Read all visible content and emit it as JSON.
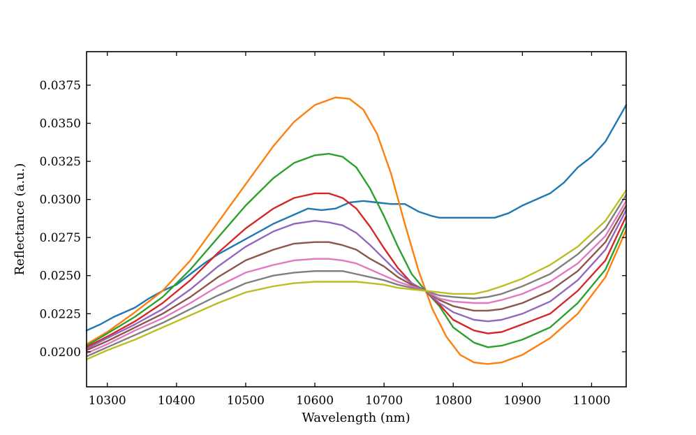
{
  "chart_data": {
    "type": "line",
    "title": "",
    "xlabel": "Wavelength (nm)",
    "ylabel": "Reflectance (a.u.)",
    "xlim": [
      10270,
      11050
    ],
    "ylim": [
      0.0177,
      0.0397
    ],
    "grid": false,
    "legend": "none",
    "x_ticks": [
      10300,
      10400,
      10500,
      10600,
      10700,
      10800,
      10900,
      11000
    ],
    "x_tick_labels": [
      "10300",
      "10400",
      "10500",
      "10600",
      "10700",
      "10800",
      "10900",
      "11000"
    ],
    "y_ticks": [
      0.02,
      0.0225,
      0.025,
      0.0275,
      0.03,
      0.0325,
      0.035,
      0.0375
    ],
    "y_tick_labels": [
      "0.0200",
      "0.0225",
      "0.0250",
      "0.0275",
      "0.0300",
      "0.0325",
      "0.0350",
      "0.0375"
    ],
    "series": [
      {
        "color": "#1f77b4",
        "points": [
          [
            10270,
            0.0214
          ],
          [
            10290,
            0.0218
          ],
          [
            10310,
            0.0223
          ],
          [
            10340,
            0.0229
          ],
          [
            10360,
            0.0235
          ],
          [
            10380,
            0.024
          ],
          [
            10400,
            0.0244
          ],
          [
            10420,
            0.0251
          ],
          [
            10440,
            0.0258
          ],
          [
            10460,
            0.0264
          ],
          [
            10480,
            0.0269
          ],
          [
            10500,
            0.0274
          ],
          [
            10520,
            0.0279
          ],
          [
            10540,
            0.0284
          ],
          [
            10560,
            0.0288
          ],
          [
            10580,
            0.0292
          ],
          [
            10590,
            0.0294
          ],
          [
            10610,
            0.0293
          ],
          [
            10630,
            0.0294
          ],
          [
            10650,
            0.0298
          ],
          [
            10670,
            0.0299
          ],
          [
            10690,
            0.0298
          ],
          [
            10710,
            0.0297
          ],
          [
            10730,
            0.0297
          ],
          [
            10750,
            0.0292
          ],
          [
            10770,
            0.0289
          ],
          [
            10780,
            0.0288
          ],
          [
            10800,
            0.0288
          ],
          [
            10820,
            0.0288
          ],
          [
            10840,
            0.0288
          ],
          [
            10860,
            0.0288
          ],
          [
            10880,
            0.0291
          ],
          [
            10900,
            0.0296
          ],
          [
            10920,
            0.03
          ],
          [
            10940,
            0.0304
          ],
          [
            10960,
            0.0311
          ],
          [
            10980,
            0.0321
          ],
          [
            11000,
            0.0328
          ],
          [
            11020,
            0.0338
          ],
          [
            11050,
            0.0362
          ]
        ]
      },
      {
        "color": "#ff7f0e",
        "points": [
          [
            10270,
            0.0205
          ],
          [
            10300,
            0.0213
          ],
          [
            10340,
            0.0226
          ],
          [
            10380,
            0.024
          ],
          [
            10420,
            0.026
          ],
          [
            10460,
            0.0285
          ],
          [
            10500,
            0.031
          ],
          [
            10540,
            0.0335
          ],
          [
            10570,
            0.0351
          ],
          [
            10600,
            0.0362
          ],
          [
            10630,
            0.0367
          ],
          [
            10650,
            0.0366
          ],
          [
            10670,
            0.0359
          ],
          [
            10690,
            0.0343
          ],
          [
            10710,
            0.0317
          ],
          [
            10730,
            0.0284
          ],
          [
            10750,
            0.0253
          ],
          [
            10770,
            0.0228
          ],
          [
            10790,
            0.021
          ],
          [
            10810,
            0.0198
          ],
          [
            10830,
            0.0193
          ],
          [
            10850,
            0.0192
          ],
          [
            10870,
            0.0193
          ],
          [
            10900,
            0.0198
          ],
          [
            10940,
            0.0209
          ],
          [
            10980,
            0.0225
          ],
          [
            11020,
            0.0249
          ],
          [
            11050,
            0.028
          ]
        ]
      },
      {
        "color": "#2ca02c",
        "points": [
          [
            10270,
            0.0204
          ],
          [
            10300,
            0.0212
          ],
          [
            10340,
            0.0223
          ],
          [
            10380,
            0.0236
          ],
          [
            10420,
            0.0254
          ],
          [
            10460,
            0.0275
          ],
          [
            10500,
            0.0296
          ],
          [
            10540,
            0.0314
          ],
          [
            10570,
            0.0324
          ],
          [
            10600,
            0.0329
          ],
          [
            10620,
            0.033
          ],
          [
            10640,
            0.0328
          ],
          [
            10660,
            0.0321
          ],
          [
            10680,
            0.0307
          ],
          [
            10700,
            0.0289
          ],
          [
            10720,
            0.0269
          ],
          [
            10740,
            0.0251
          ],
          [
            10760,
            0.024
          ],
          [
            10780,
            0.023
          ],
          [
            10800,
            0.0216
          ],
          [
            10830,
            0.0206
          ],
          [
            10850,
            0.0203
          ],
          [
            10870,
            0.0204
          ],
          [
            10900,
            0.0208
          ],
          [
            10940,
            0.0216
          ],
          [
            10980,
            0.0232
          ],
          [
            11020,
            0.0254
          ],
          [
            11050,
            0.0284
          ]
        ]
      },
      {
        "color": "#d62728",
        "points": [
          [
            10270,
            0.0203
          ],
          [
            10300,
            0.021
          ],
          [
            10340,
            0.022
          ],
          [
            10380,
            0.0232
          ],
          [
            10420,
            0.0247
          ],
          [
            10460,
            0.0265
          ],
          [
            10500,
            0.0281
          ],
          [
            10540,
            0.0294
          ],
          [
            10570,
            0.0301
          ],
          [
            10600,
            0.0304
          ],
          [
            10620,
            0.0304
          ],
          [
            10640,
            0.0301
          ],
          [
            10660,
            0.0294
          ],
          [
            10680,
            0.0282
          ],
          [
            10700,
            0.0268
          ],
          [
            10720,
            0.0255
          ],
          [
            10740,
            0.0245
          ],
          [
            10760,
            0.024
          ],
          [
            10780,
            0.0231
          ],
          [
            10800,
            0.0221
          ],
          [
            10830,
            0.0214
          ],
          [
            10850,
            0.0212
          ],
          [
            10870,
            0.0213
          ],
          [
            10900,
            0.0218
          ],
          [
            10940,
            0.0225
          ],
          [
            10980,
            0.024
          ],
          [
            11020,
            0.026
          ],
          [
            11050,
            0.0289
          ]
        ]
      },
      {
        "color": "#9467bd",
        "points": [
          [
            10270,
            0.0202
          ],
          [
            10300,
            0.0209
          ],
          [
            10340,
            0.0218
          ],
          [
            10380,
            0.0228
          ],
          [
            10420,
            0.0241
          ],
          [
            10460,
            0.0256
          ],
          [
            10500,
            0.0269
          ],
          [
            10540,
            0.0279
          ],
          [
            10570,
            0.0284
          ],
          [
            10600,
            0.0286
          ],
          [
            10620,
            0.0285
          ],
          [
            10640,
            0.0283
          ],
          [
            10660,
            0.0278
          ],
          [
            10680,
            0.027
          ],
          [
            10700,
            0.0261
          ],
          [
            10720,
            0.0252
          ],
          [
            10740,
            0.0245
          ],
          [
            10760,
            0.024
          ],
          [
            10780,
            0.0232
          ],
          [
            10800,
            0.0226
          ],
          [
            10830,
            0.0221
          ],
          [
            10850,
            0.022
          ],
          [
            10870,
            0.0221
          ],
          [
            10900,
            0.0225
          ],
          [
            10940,
            0.0233
          ],
          [
            10980,
            0.0247
          ],
          [
            11020,
            0.0267
          ],
          [
            11050,
            0.0293
          ]
        ]
      },
      {
        "color": "#8c564b",
        "points": [
          [
            10270,
            0.0201
          ],
          [
            10300,
            0.0207
          ],
          [
            10340,
            0.0216
          ],
          [
            10380,
            0.0225
          ],
          [
            10420,
            0.0236
          ],
          [
            10460,
            0.0249
          ],
          [
            10500,
            0.026
          ],
          [
            10540,
            0.0267
          ],
          [
            10570,
            0.0271
          ],
          [
            10600,
            0.0272
          ],
          [
            10620,
            0.0272
          ],
          [
            10640,
            0.027
          ],
          [
            10660,
            0.0267
          ],
          [
            10680,
            0.0261
          ],
          [
            10700,
            0.0256
          ],
          [
            10720,
            0.0249
          ],
          [
            10740,
            0.0244
          ],
          [
            10760,
            0.024
          ],
          [
            10780,
            0.0234
          ],
          [
            10800,
            0.023
          ],
          [
            10830,
            0.0227
          ],
          [
            10850,
            0.0227
          ],
          [
            10870,
            0.0228
          ],
          [
            10900,
            0.0232
          ],
          [
            10940,
            0.024
          ],
          [
            10980,
            0.0253
          ],
          [
            11020,
            0.0272
          ],
          [
            11050,
            0.0296
          ]
        ]
      },
      {
        "color": "#e377c2",
        "points": [
          [
            10270,
            0.0199
          ],
          [
            10300,
            0.0205
          ],
          [
            10340,
            0.0214
          ],
          [
            10380,
            0.0222
          ],
          [
            10420,
            0.0232
          ],
          [
            10460,
            0.0243
          ],
          [
            10500,
            0.0252
          ],
          [
            10540,
            0.0257
          ],
          [
            10570,
            0.026
          ],
          [
            10600,
            0.0261
          ],
          [
            10620,
            0.0261
          ],
          [
            10640,
            0.026
          ],
          [
            10660,
            0.0258
          ],
          [
            10680,
            0.0254
          ],
          [
            10700,
            0.025
          ],
          [
            10720,
            0.0246
          ],
          [
            10740,
            0.0243
          ],
          [
            10760,
            0.024
          ],
          [
            10780,
            0.0235
          ],
          [
            10800,
            0.0233
          ],
          [
            10830,
            0.0232
          ],
          [
            10850,
            0.0232
          ],
          [
            10870,
            0.0234
          ],
          [
            10900,
            0.0238
          ],
          [
            10940,
            0.0246
          ],
          [
            10980,
            0.0258
          ],
          [
            11020,
            0.0276
          ],
          [
            11050,
            0.0299
          ]
        ]
      },
      {
        "color": "#7f7f7f",
        "points": [
          [
            10270,
            0.0197
          ],
          [
            10300,
            0.0203
          ],
          [
            10340,
            0.0211
          ],
          [
            10380,
            0.0219
          ],
          [
            10420,
            0.0228
          ],
          [
            10460,
            0.0237
          ],
          [
            10500,
            0.0245
          ],
          [
            10540,
            0.025
          ],
          [
            10570,
            0.0252
          ],
          [
            10600,
            0.0253
          ],
          [
            10620,
            0.0253
          ],
          [
            10640,
            0.0253
          ],
          [
            10660,
            0.0251
          ],
          [
            10680,
            0.0249
          ],
          [
            10700,
            0.0247
          ],
          [
            10720,
            0.0244
          ],
          [
            10740,
            0.0242
          ],
          [
            10760,
            0.024
          ],
          [
            10780,
            0.0237
          ],
          [
            10800,
            0.0236
          ],
          [
            10830,
            0.0235
          ],
          [
            10850,
            0.0236
          ],
          [
            10870,
            0.0238
          ],
          [
            10900,
            0.0243
          ],
          [
            10940,
            0.0251
          ],
          [
            10980,
            0.0264
          ],
          [
            11020,
            0.0281
          ],
          [
            11050,
            0.0303
          ]
        ]
      },
      {
        "color": "#bcbd22",
        "points": [
          [
            10270,
            0.0195
          ],
          [
            10300,
            0.0201
          ],
          [
            10340,
            0.0208
          ],
          [
            10380,
            0.0216
          ],
          [
            10420,
            0.0224
          ],
          [
            10460,
            0.0232
          ],
          [
            10500,
            0.0239
          ],
          [
            10540,
            0.0243
          ],
          [
            10570,
            0.0245
          ],
          [
            10600,
            0.0246
          ],
          [
            10620,
            0.0246
          ],
          [
            10640,
            0.0246
          ],
          [
            10660,
            0.0246
          ],
          [
            10680,
            0.0245
          ],
          [
            10700,
            0.0244
          ],
          [
            10720,
            0.0242
          ],
          [
            10740,
            0.0241
          ],
          [
            10760,
            0.024
          ],
          [
            10780,
            0.0239
          ],
          [
            10800,
            0.0238
          ],
          [
            10830,
            0.0238
          ],
          [
            10850,
            0.024
          ],
          [
            10870,
            0.0243
          ],
          [
            10900,
            0.0248
          ],
          [
            10940,
            0.0257
          ],
          [
            10980,
            0.0269
          ],
          [
            11020,
            0.0286
          ],
          [
            11050,
            0.0306
          ]
        ]
      }
    ]
  }
}
